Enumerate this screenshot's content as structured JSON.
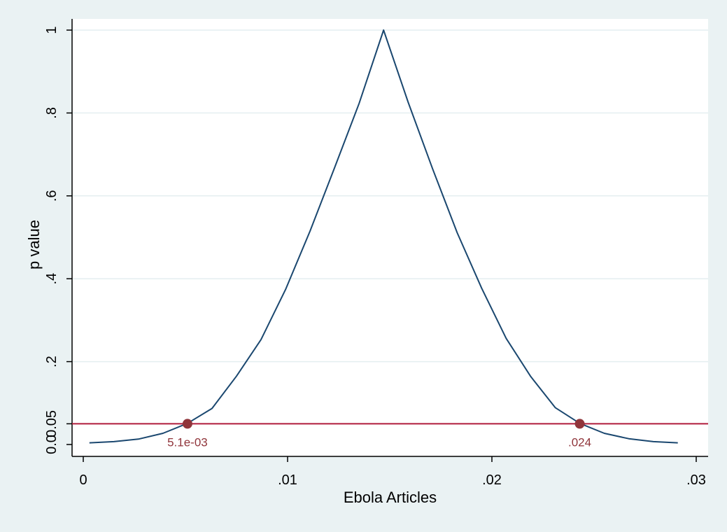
{
  "chart_data": {
    "type": "line",
    "title": "",
    "xlabel": "Ebola Articles",
    "ylabel": "p value",
    "xlim": [
      0,
      0.03
    ],
    "ylim": [
      0,
      1
    ],
    "x_ticks": [
      {
        "value": 0,
        "label": "0"
      },
      {
        "value": 0.01,
        "label": ".01"
      },
      {
        "value": 0.02,
        "label": ".02"
      },
      {
        "value": 0.03,
        "label": ".03"
      }
    ],
    "y_ticks": [
      {
        "value": 0,
        "label": "0.0"
      },
      {
        "value": 0.05,
        "label": "0.05"
      },
      {
        "value": 0.2,
        "label": ".2"
      },
      {
        "value": 0.4,
        "label": ".4"
      },
      {
        "value": 0.6,
        "label": ".6"
      },
      {
        "value": 0.8,
        "label": ".8"
      },
      {
        "value": 1,
        "label": "1"
      }
    ],
    "grid": true,
    "series": [
      {
        "color": "#1a476f",
        "x": [
          0.0003,
          0.0015,
          0.0027,
          0.0039,
          0.0051,
          0.0063,
          0.0075,
          0.0087,
          0.0099,
          0.0111,
          0.0123,
          0.0135,
          0.0147,
          0.0159,
          0.0171,
          0.0183,
          0.0195,
          0.0207,
          0.0219,
          0.0231,
          0.0243,
          0.0255,
          0.0267,
          0.0279,
          0.0291
        ],
        "y": [
          0.004,
          0.007,
          0.013,
          0.027,
          0.051,
          0.087,
          0.165,
          0.253,
          0.374,
          0.515,
          0.668,
          0.823,
          1.0,
          0.826,
          0.665,
          0.511,
          0.377,
          0.256,
          0.164,
          0.089,
          0.051,
          0.027,
          0.014,
          0.007,
          0.004
        ]
      }
    ],
    "reference_line": {
      "y": 0.05,
      "color": "#b01c3c"
    },
    "markers": [
      {
        "x": 0.0051,
        "y": 0.05,
        "label": "5.1e-03",
        "color": "#90353b"
      },
      {
        "x": 0.0243,
        "y": 0.05,
        "label": ".024",
        "color": "#90353b"
      }
    ],
    "colors": {
      "background": "#eaf2f3",
      "plot_background": "#ffffff",
      "grid": "#e4eef0"
    }
  }
}
